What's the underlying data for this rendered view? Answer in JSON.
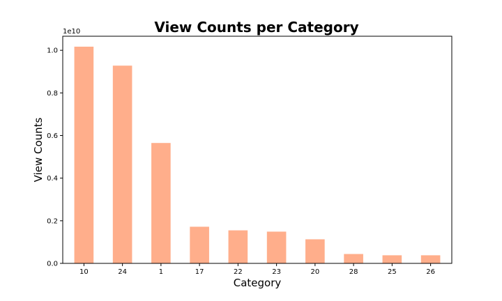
{
  "chart_data": {
    "type": "bar",
    "title": "View Counts per Category",
    "xlabel": "Category",
    "ylabel": "View Counts",
    "categories": [
      "10",
      "24",
      "1",
      "17",
      "22",
      "23",
      "20",
      "28",
      "25",
      "26"
    ],
    "values": [
      10170000000,
      9280000000,
      5650000000,
      1720000000,
      1550000000,
      1490000000,
      1130000000,
      440000000,
      380000000,
      380000000
    ],
    "ylim": [
      0,
      10660000000
    ],
    "yticks": [
      0,
      2000000000,
      4000000000,
      6000000000,
      8000000000,
      10000000000
    ],
    "ytick_labels": [
      "0.0",
      "0.2",
      "0.4",
      "0.6",
      "0.8",
      "1.0"
    ],
    "y_offset_label": "1e10",
    "bar_color": "#ffae8b",
    "grid": false,
    "legend": "none"
  }
}
